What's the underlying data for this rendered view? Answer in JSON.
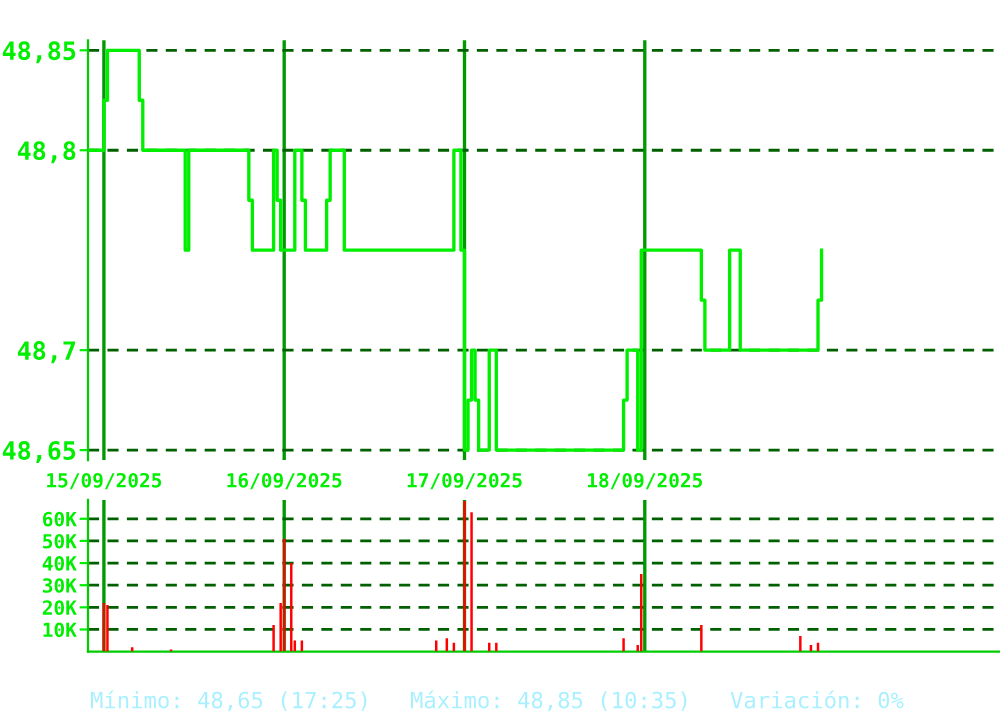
{
  "chart_data": [
    {
      "type": "step",
      "color": "#00ee00",
      "grid": true,
      "categories": [
        null,
        null,
        null,
        null,
        "15/09/2025",
        null,
        null,
        null,
        null,
        null,
        null,
        null,
        null,
        null,
        null,
        null,
        null,
        null,
        null,
        null,
        null,
        null,
        null,
        null,
        null,
        null,
        null,
        null,
        null,
        null,
        null,
        null,
        null,
        null,
        null,
        null,
        null,
        null,
        null,
        null,
        null,
        null,
        null,
        null,
        null,
        null,
        null,
        null,
        null,
        null,
        null,
        null,
        null,
        null,
        null,
        "16/09/2025",
        null,
        null,
        null,
        null,
        null,
        null,
        null,
        null,
        null,
        null,
        null,
        null,
        null,
        null,
        null,
        null,
        null,
        null,
        null,
        null,
        null,
        null,
        null,
        null,
        null,
        null,
        null,
        null,
        null,
        null,
        null,
        null,
        null,
        null,
        null,
        null,
        null,
        null,
        null,
        null,
        null,
        null,
        null,
        null,
        null,
        null,
        null,
        null,
        null,
        null,
        "17/09/2025",
        null,
        null,
        null,
        null,
        null,
        null,
        null,
        null,
        null,
        null,
        null,
        null,
        null,
        null,
        null,
        null,
        null,
        null,
        null,
        null,
        null,
        null,
        null,
        null,
        null,
        null,
        null,
        null,
        null,
        null,
        null,
        null,
        null,
        null,
        null,
        null,
        null,
        null,
        null,
        null,
        null,
        null,
        null,
        null,
        null,
        null,
        null,
        null,
        null,
        null,
        "18/09/2025",
        null,
        null,
        null,
        null,
        null,
        null,
        null,
        null,
        null,
        null,
        null,
        null,
        null,
        null,
        null,
        null,
        null,
        null,
        null,
        null,
        null,
        null,
        null,
        null,
        null,
        null,
        null,
        null,
        null,
        null,
        null,
        null,
        null,
        null,
        null,
        null,
        null,
        null,
        null,
        null,
        null,
        null,
        null,
        null,
        null,
        null,
        null,
        null,
        null,
        null
      ],
      "values": [
        48.8,
        48.8,
        48.8,
        48.8,
        48.825,
        48.85,
        48.85,
        48.85,
        48.85,
        48.85,
        48.85,
        48.85,
        48.85,
        48.85,
        48.825,
        48.8,
        48.8,
        48.8,
        48.8,
        48.8,
        48.8,
        48.8,
        48.8,
        48.8,
        48.8,
        48.8,
        48.8,
        48.75,
        48.8,
        48.8,
        48.8,
        48.8,
        48.8,
        48.8,
        48.8,
        48.8,
        48.8,
        48.8,
        48.8,
        48.8,
        48.8,
        48.8,
        48.8,
        48.8,
        48.8,
        48.775,
        48.75,
        48.75,
        48.75,
        48.75,
        48.75,
        48.75,
        48.8,
        48.775,
        48.75,
        48.75,
        48.75,
        48.75,
        48.8,
        48.8,
        48.775,
        48.75,
        48.75,
        48.75,
        48.75,
        48.75,
        48.75,
        48.775,
        48.8,
        48.8,
        48.8,
        48.8,
        48.75,
        48.75,
        48.75,
        48.75,
        48.75,
        48.75,
        48.75,
        48.75,
        48.75,
        48.75,
        48.75,
        48.75,
        48.75,
        48.75,
        48.75,
        48.75,
        48.75,
        48.75,
        48.75,
        48.75,
        48.75,
        48.75,
        48.75,
        48.75,
        48.75,
        48.75,
        48.75,
        48.75,
        48.75,
        48.75,
        48.75,
        48.8,
        48.8,
        48.75,
        48.65,
        48.675,
        48.7,
        48.675,
        48.65,
        48.65,
        48.65,
        48.7,
        48.7,
        48.65,
        48.65,
        48.65,
        48.65,
        48.65,
        48.65,
        48.65,
        48.65,
        48.65,
        48.65,
        48.65,
        48.65,
        48.65,
        48.65,
        48.65,
        48.65,
        48.65,
        48.65,
        48.65,
        48.65,
        48.65,
        48.65,
        48.65,
        48.65,
        48.65,
        48.65,
        48.65,
        48.65,
        48.65,
        48.65,
        48.65,
        48.65,
        48.65,
        48.65,
        48.65,
        48.65,
        48.675,
        48.7,
        48.7,
        48.7,
        48.65,
        48.75,
        48.75,
        48.75,
        48.75,
        48.75,
        48.75,
        48.75,
        48.75,
        48.75,
        48.75,
        48.75,
        48.75,
        48.75,
        48.75,
        48.75,
        48.75,
        48.75,
        48.725,
        48.7,
        48.7,
        48.7,
        48.7,
        48.7,
        48.7,
        48.7,
        48.75,
        48.75,
        48.75,
        48.7,
        48.7,
        48.7,
        48.7,
        48.7,
        48.7,
        48.7,
        48.7,
        48.7,
        48.7,
        48.7,
        48.7,
        48.7,
        48.7,
        48.7,
        48.7,
        48.7,
        48.7,
        48.7,
        48.7,
        48.7,
        48.7,
        48.725,
        48.75
      ],
      "ylim": [
        48.645,
        48.855
      ],
      "yticks": [
        {
          "value": 48.65,
          "label": "48,65"
        },
        {
          "value": 48.7,
          "label": "48,7"
        },
        {
          "value": 48.8,
          "label": "48,8"
        },
        {
          "value": 48.85,
          "label": "48,85"
        }
      ]
    },
    {
      "type": "bar",
      "color": "#ff0000",
      "grid": true,
      "tick_labels": "y",
      "categories": [
        null,
        null,
        null,
        null,
        null,
        null,
        null,
        null,
        null,
        null,
        null,
        null,
        null,
        null,
        null,
        null,
        null,
        null,
        null,
        null,
        null,
        null,
        null,
        null,
        null,
        null,
        null,
        null,
        null,
        null,
        null,
        null,
        null,
        null,
        null,
        null,
        null,
        null,
        null,
        null,
        null,
        null,
        null,
        null,
        null,
        null,
        null,
        null,
        null,
        null,
        null,
        null,
        null,
        null,
        null,
        null,
        null,
        null,
        null,
        null,
        null,
        null,
        null,
        null,
        null,
        null,
        null,
        null,
        null,
        null,
        null,
        null,
        null,
        null,
        null,
        null,
        null,
        null,
        null,
        null,
        null,
        null,
        null,
        null,
        null,
        null,
        null,
        null,
        null,
        null,
        null,
        null,
        null,
        null,
        null,
        null,
        null,
        null,
        null,
        null,
        null,
        null,
        null,
        null,
        null,
        null,
        null,
        null,
        null,
        null,
        null,
        null,
        null,
        null,
        null,
        null,
        null,
        null,
        null,
        null,
        null,
        null,
        null,
        null,
        null,
        null,
        null,
        null,
        null,
        null,
        null,
        null,
        null,
        null,
        null,
        null,
        null,
        null,
        null,
        null,
        null,
        null,
        null,
        null,
        null,
        null,
        null,
        null,
        null,
        null,
        null,
        null,
        null,
        null,
        null,
        null,
        null,
        null,
        null,
        null,
        null,
        null,
        null,
        null,
        null,
        null,
        null,
        null,
        null,
        null,
        null,
        null,
        null,
        null,
        null,
        null,
        null,
        null,
        null,
        null,
        null,
        null,
        null,
        null,
        null,
        null,
        null,
        null,
        null,
        null,
        null,
        null,
        null,
        null,
        null,
        null,
        null,
        null,
        null,
        null,
        null,
        null,
        null,
        null,
        null,
        null,
        null,
        null
      ],
      "values": [
        null,
        null,
        null,
        null,
        22000,
        21000,
        null,
        null,
        null,
        null,
        null,
        null,
        2000,
        null,
        null,
        null,
        null,
        null,
        null,
        null,
        null,
        null,
        null,
        1000,
        null,
        null,
        null,
        null,
        null,
        null,
        null,
        null,
        null,
        null,
        null,
        null,
        null,
        null,
        null,
        null,
        null,
        null,
        null,
        null,
        null,
        null,
        null,
        null,
        null,
        null,
        null,
        null,
        12000,
        null,
        22000,
        51000,
        null,
        40000,
        5000,
        null,
        5000,
        null,
        null,
        null,
        null,
        null,
        null,
        null,
        null,
        null,
        null,
        null,
        null,
        null,
        null,
        null,
        null,
        null,
        null,
        null,
        null,
        null,
        null,
        null,
        null,
        null,
        null,
        null,
        null,
        null,
        null,
        null,
        null,
        null,
        null,
        null,
        null,
        null,
        5000,
        null,
        null,
        6000,
        null,
        4000,
        null,
        null,
        68000,
        null,
        63000,
        null,
        null,
        null,
        null,
        4000,
        null,
        4000,
        null,
        null,
        null,
        null,
        null,
        null,
        null,
        null,
        null,
        null,
        null,
        null,
        null,
        null,
        null,
        null,
        null,
        null,
        null,
        null,
        null,
        null,
        null,
        null,
        null,
        null,
        null,
        null,
        null,
        null,
        null,
        null,
        null,
        null,
        null,
        6000,
        null,
        null,
        null,
        3000,
        35000,
        null,
        null,
        null,
        null,
        null,
        null,
        null,
        null,
        null,
        null,
        null,
        null,
        null,
        null,
        null,
        null,
        12000,
        null,
        null,
        null,
        null,
        null,
        null,
        null,
        null,
        null,
        null,
        null,
        null,
        null,
        null,
        null,
        null,
        null,
        null,
        null,
        null,
        null,
        null,
        null,
        null,
        null,
        null,
        null,
        7000,
        null,
        null,
        3000,
        null,
        4000,
        null
      ],
      "ylim": [
        0,
        68500
      ],
      "yticks": [
        {
          "value": 10000,
          "label": "10K"
        },
        {
          "value": 20000,
          "label": "20K"
        },
        {
          "value": 30000,
          "label": "30K"
        },
        {
          "value": 40000,
          "label": "40K"
        },
        {
          "value": 50000,
          "label": "50K"
        },
        {
          "value": 60000,
          "label": "60K"
        }
      ],
      "annotations": [
        "Mínimo: 48,65 (17:25)",
        "Máximo: 48,85 (10:35)",
        "Variación: 0%"
      ]
    }
  ]
}
